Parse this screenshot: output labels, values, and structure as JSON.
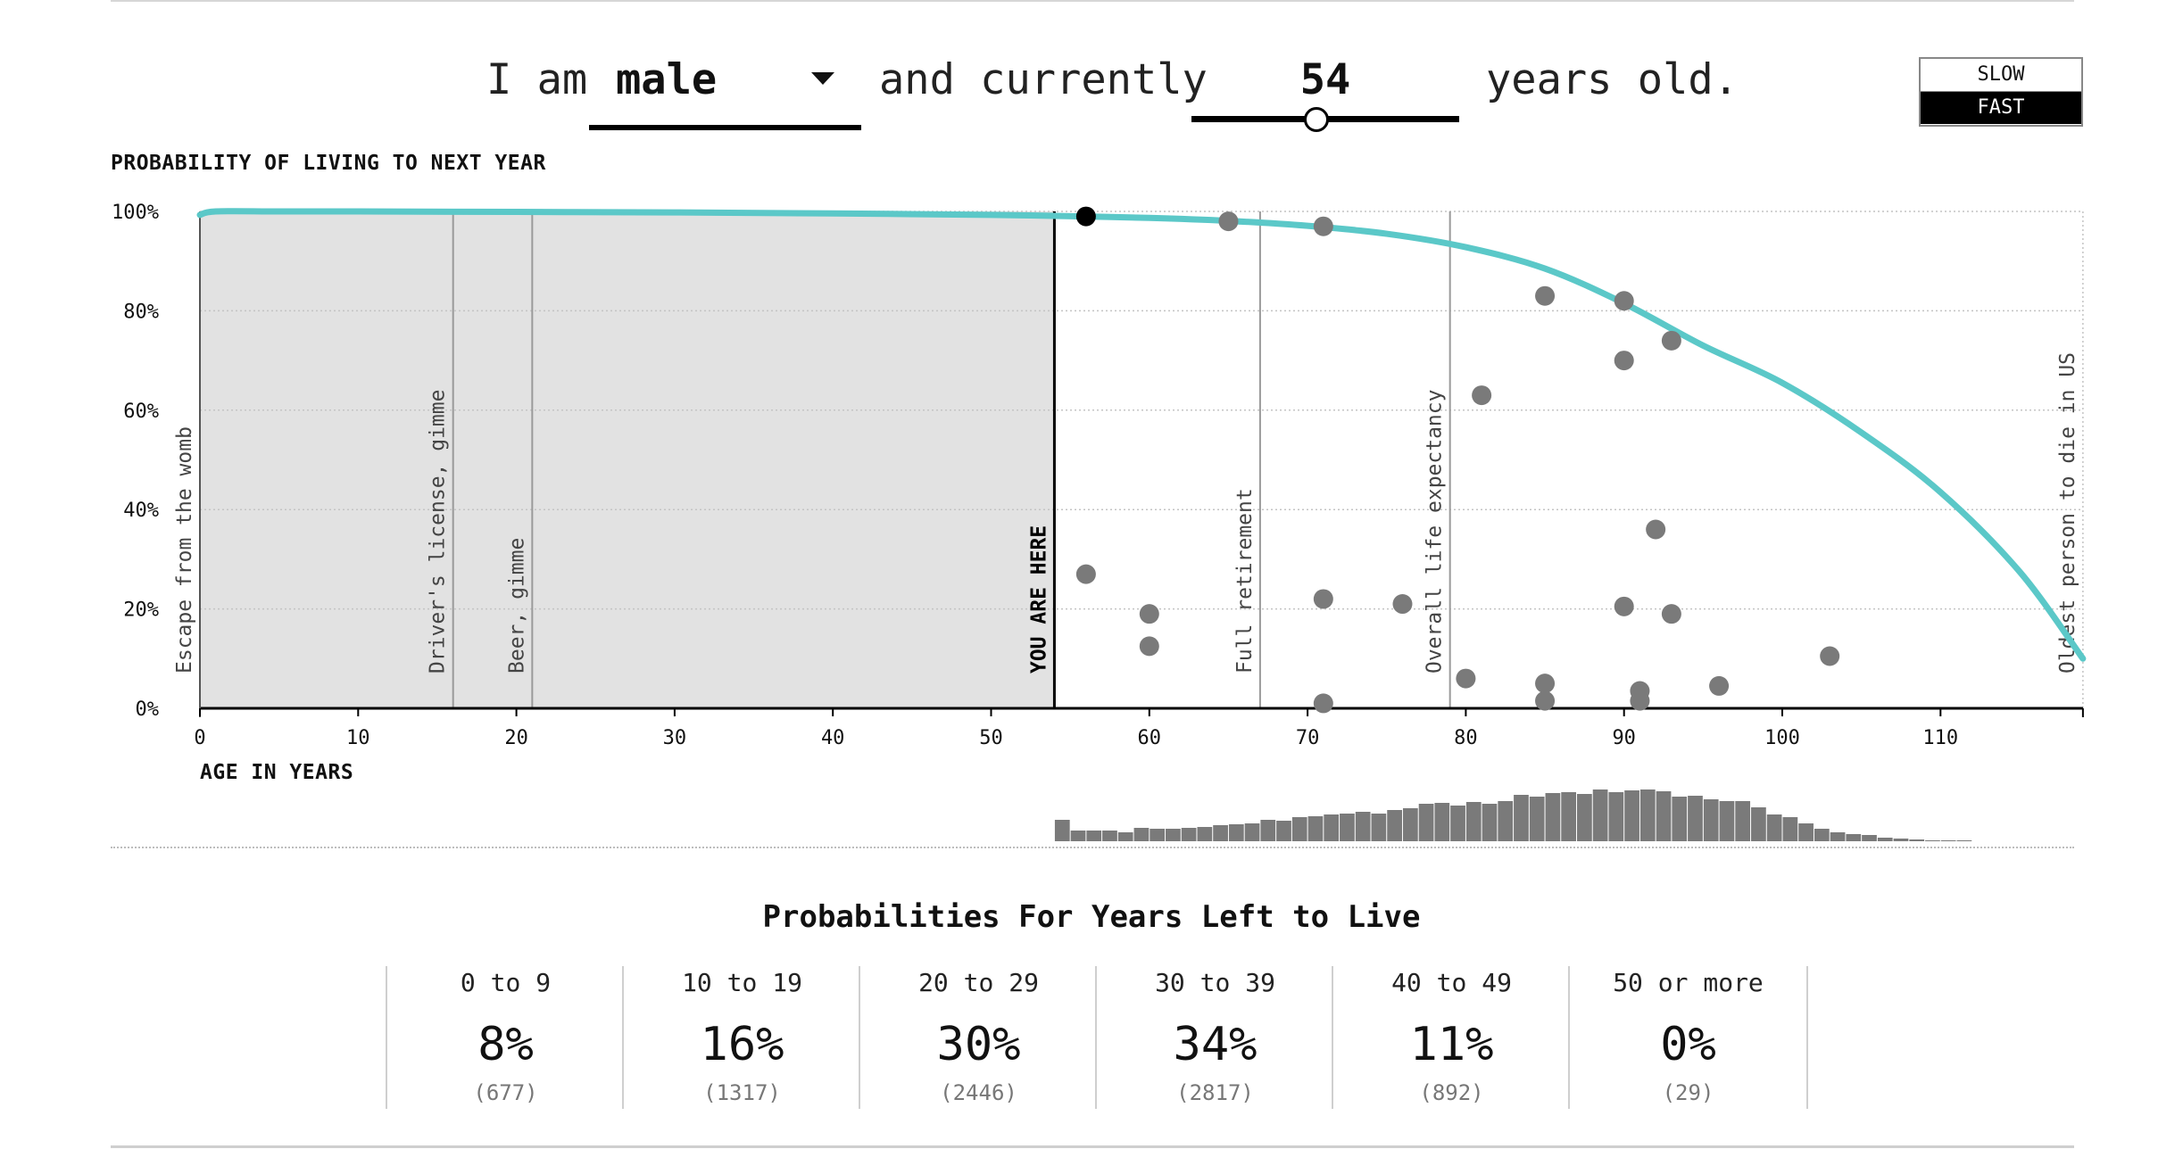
{
  "header": {
    "prefix": "I am",
    "sex_value": "male",
    "middle": "and currently",
    "age_value": "54",
    "suffix": "years old.",
    "speed_slow": "SLOW",
    "speed_fast": "FAST",
    "speed_selected": "FAST"
  },
  "chart_data": {
    "type": "line",
    "title": "PROBABILITY OF LIVING TO NEXT YEAR",
    "xlabel": "AGE IN YEARS",
    "ylabel": "",
    "xlim": [
      0,
      119
    ],
    "ylim": [
      0,
      100
    ],
    "x_ticks": [
      0,
      10,
      20,
      30,
      40,
      50,
      60,
      70,
      80,
      90,
      100,
      110
    ],
    "y_ticks": [
      0,
      20,
      40,
      60,
      80,
      100
    ],
    "y_tick_labels": [
      "0%",
      "20%",
      "40%",
      "60%",
      "80%",
      "100%"
    ],
    "grid": "horizontal-dotted",
    "curve": {
      "x": [
        0,
        1,
        5,
        10,
        20,
        30,
        40,
        50,
        54,
        60,
        65,
        70,
        75,
        80,
        85,
        90,
        95,
        100,
        105,
        110,
        115,
        119
      ],
      "y": [
        99.3,
        100,
        100,
        100,
        99.9,
        99.8,
        99.6,
        99.3,
        99.1,
        98.7,
        98.1,
        97.1,
        95.5,
        92.8,
        88.5,
        81.5,
        73,
        65.5,
        55.5,
        43.5,
        27.5,
        10
      ]
    },
    "current_age": 54,
    "current_point": {
      "x": 56,
      "y": 99
    },
    "shaded_range": [
      0,
      54
    ],
    "milestones": [
      {
        "age": 0,
        "label": "Escape from the womb"
      },
      {
        "age": 16,
        "label": "Driver's license, gimme"
      },
      {
        "age": 21,
        "label": "Beer, gimme"
      },
      {
        "age": 54,
        "label": "YOU ARE HERE",
        "emphasis": true
      },
      {
        "age": 67,
        "label": "Full retirement"
      },
      {
        "age": 79,
        "label": "Overall life expectancy"
      },
      {
        "age": 119,
        "label": "Oldest person to die in US"
      }
    ],
    "simulation_points": [
      {
        "x": 65,
        "y": 98
      },
      {
        "x": 71,
        "y": 97
      },
      {
        "x": 85,
        "y": 83
      },
      {
        "x": 90,
        "y": 82
      },
      {
        "x": 93,
        "y": 74
      },
      {
        "x": 90,
        "y": 70
      },
      {
        "x": 81,
        "y": 63
      },
      {
        "x": 92,
        "y": 36
      },
      {
        "x": 56,
        "y": 27
      },
      {
        "x": 71,
        "y": 22
      },
      {
        "x": 76,
        "y": 21
      },
      {
        "x": 90,
        "y": 20.5
      },
      {
        "x": 93,
        "y": 19
      },
      {
        "x": 60,
        "y": 19
      },
      {
        "x": 60,
        "y": 12.5
      },
      {
        "x": 103,
        "y": 10.5
      },
      {
        "x": 80,
        "y": 6
      },
      {
        "x": 85,
        "y": 5
      },
      {
        "x": 96,
        "y": 4.5
      },
      {
        "x": 91,
        "y": 3.5
      },
      {
        "x": 85,
        "y": 1.5
      },
      {
        "x": 91,
        "y": 1.5
      },
      {
        "x": 71,
        "y": 1
      }
    ],
    "histogram": {
      "start_age": 55,
      "bin_width": 1,
      "heights": [
        24,
        12,
        12,
        12,
        10,
        15,
        14,
        14,
        15,
        16,
        18,
        19,
        20,
        24,
        23,
        27,
        28,
        30,
        31,
        33,
        31,
        35,
        37,
        42,
        43,
        40,
        44,
        42,
        45,
        52,
        50,
        54,
        55,
        53,
        58,
        55,
        57,
        58,
        56,
        50,
        51,
        47,
        45,
        45,
        38,
        30,
        27,
        20,
        14,
        10,
        8,
        7,
        4,
        3,
        2,
        1,
        1,
        1
      ]
    }
  },
  "probabilities": {
    "title": "Probabilities For Years Left to Live",
    "bins": [
      {
        "label": "0 to 9",
        "pct": "8%",
        "count": "(677)"
      },
      {
        "label": "10 to 19",
        "pct": "16%",
        "count": "(1317)"
      },
      {
        "label": "20 to 29",
        "pct": "30%",
        "count": "(2446)"
      },
      {
        "label": "30 to 39",
        "pct": "34%",
        "count": "(2817)"
      },
      {
        "label": "40 to 49",
        "pct": "11%",
        "count": "(892)"
      },
      {
        "label": "50 or more",
        "pct": "0%",
        "count": "(29)"
      }
    ]
  },
  "colors": {
    "curve": "#5bc8c8",
    "points": "#7a7a7a",
    "current_point": "#000000",
    "shade": "#e2e2e2",
    "milestone": "#9a9a9a",
    "histogram": "#7a7a7a"
  }
}
